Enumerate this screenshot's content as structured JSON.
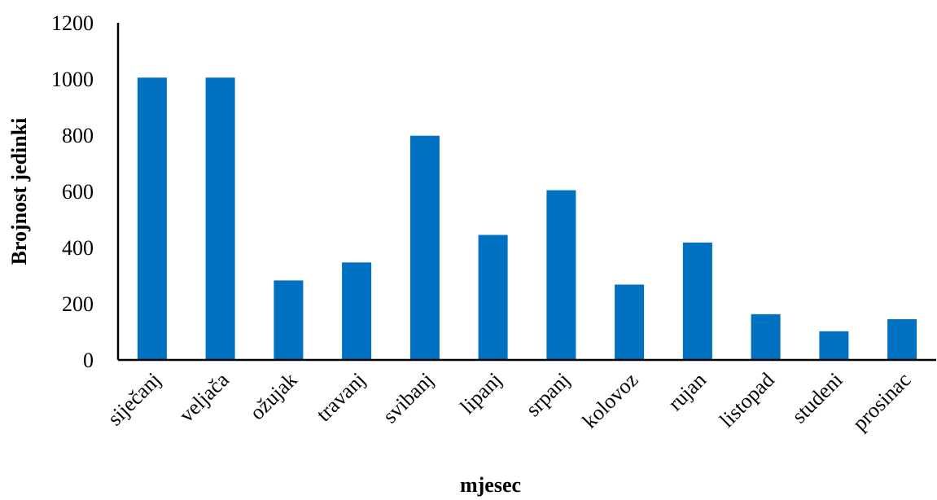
{
  "chart_data": {
    "type": "bar",
    "title": "",
    "xlabel": "mjesec",
    "ylabel": "Brojnost jedinki",
    "categories": [
      "siječanj",
      "veljača",
      "ožujak",
      "travanj",
      "svibanj",
      "lipanj",
      "srpanj",
      "kolovoz",
      "rujan",
      "listopad",
      "studeni",
      "prosinac"
    ],
    "values": [
      1005,
      1005,
      283,
      347,
      798,
      445,
      604,
      268,
      418,
      163,
      102,
      145
    ],
    "ylim": [
      0,
      1200
    ],
    "yticks": [
      0,
      200,
      400,
      600,
      800,
      1000,
      1200
    ],
    "grid": false,
    "legend": "none",
    "bar_color": "#0070C0"
  }
}
